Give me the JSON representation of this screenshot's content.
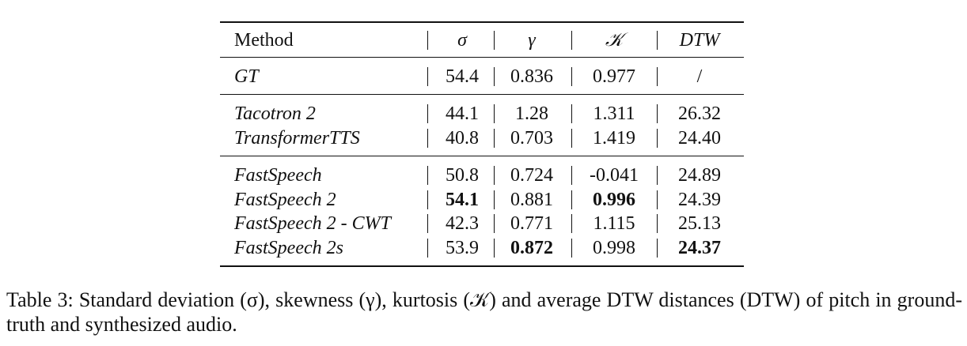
{
  "table": {
    "header": [
      "Method",
      "σ",
      "γ",
      "𝒦",
      "DTW"
    ],
    "groups": [
      [
        [
          "GT",
          "54.4",
          "0.836",
          "0.977",
          "/"
        ]
      ],
      [
        [
          "Tacotron 2",
          "44.1",
          "1.28",
          "1.311",
          "26.32"
        ],
        [
          "TransformerTTS",
          "40.8",
          "0.703",
          "1.419",
          "24.40"
        ]
      ],
      [
        [
          "FastSpeech",
          "50.8",
          "0.724",
          "-0.041",
          "24.89"
        ],
        [
          "FastSpeech 2",
          "54.1",
          "0.881",
          "0.996",
          "24.39"
        ],
        [
          "FastSpeech 2 - CWT",
          "42.3",
          "0.771",
          "1.115",
          "25.13"
        ],
        [
          "FastSpeech 2s",
          "53.9",
          "0.872",
          "0.998",
          "24.37"
        ]
      ]
    ],
    "bold": [
      [
        2,
        1,
        1
      ],
      [
        2,
        1,
        3
      ],
      [
        2,
        3,
        2
      ],
      [
        2,
        3,
        4
      ]
    ]
  },
  "caption": "Table 3: Standard deviation (σ), skewness (γ), kurtosis (𝒦) and average DTW distances (DTW) of pitch in ground-truth and synthesized audio."
}
